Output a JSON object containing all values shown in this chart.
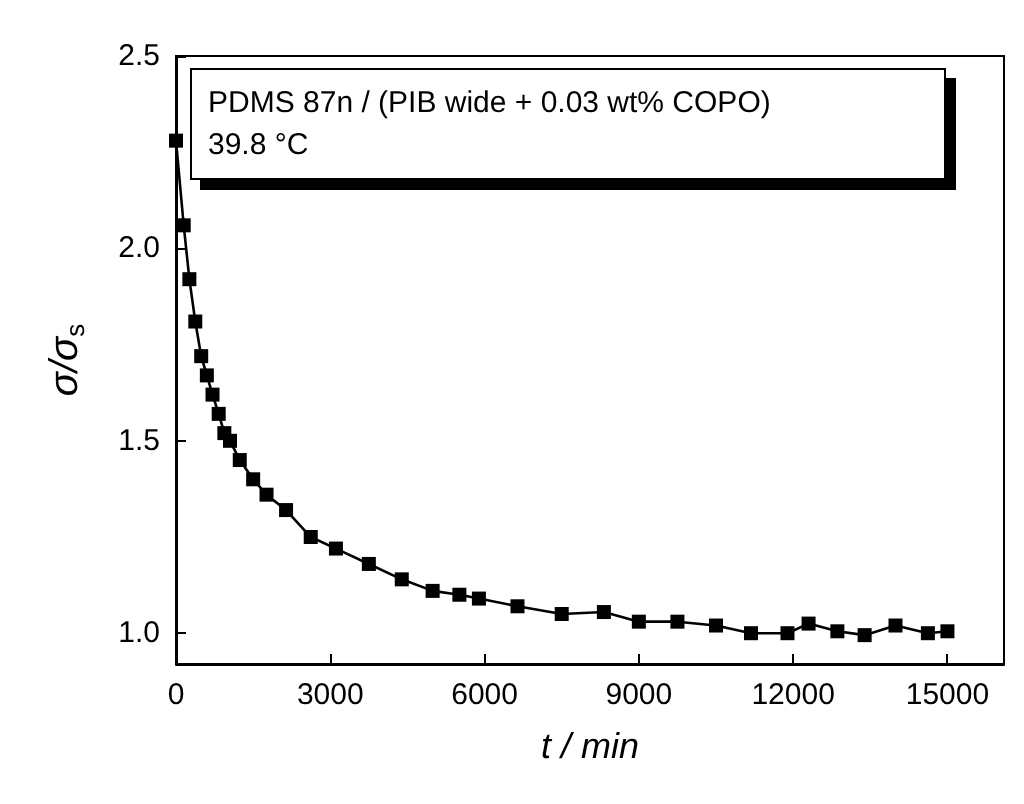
{
  "chart_data": {
    "type": "line",
    "xlabel": "t / min",
    "ylabel": "σ/σ$_{s}$",
    "annotations": [
      "PDMS 87n / (PIB wide + 0.03 wt% COPO)",
      "39.8 °C"
    ],
    "x": [
      0,
      150,
      260,
      375,
      490,
      600,
      710,
      830,
      940,
      1050,
      1240,
      1500,
      1760,
      2140,
      2620,
      3110,
      3750,
      4390,
      4990,
      5510,
      5890,
      6640,
      7500,
      8320,
      9000,
      9750,
      10500,
      11180,
      11890,
      12300,
      12860,
      13390,
      13990,
      14620,
      15000
    ],
    "series": [
      {
        "color": "#000000",
        "values": [
          2.28,
          2.06,
          1.92,
          1.81,
          1.72,
          1.67,
          1.62,
          1.57,
          1.52,
          1.5,
          1.45,
          1.4,
          1.36,
          1.32,
          1.25,
          1.22,
          1.18,
          1.14,
          1.11,
          1.1,
          1.09,
          1.07,
          1.05,
          1.055,
          1.03,
          1.03,
          1.02,
          1.0,
          1.0,
          1.025,
          1.005,
          0.995,
          1.02,
          1.0,
          1.005
        ]
      }
    ],
    "xlim": [
      0,
      16100
    ],
    "xticks": [
      0,
      3000,
      6000,
      9000,
      12000,
      15000
    ],
    "ylim": [
      0.92,
      2.5
    ],
    "yticks": [
      {
        "value": 1,
        "label": "1.0"
      },
      {
        "value": 1.5,
        "label": "1.5"
      },
      {
        "value": 2,
        "label": "2.0"
      },
      {
        "value": 2.5,
        "label": "2.5"
      }
    ],
    "grid": false,
    "marker": "square",
    "line_style": "solid"
  }
}
